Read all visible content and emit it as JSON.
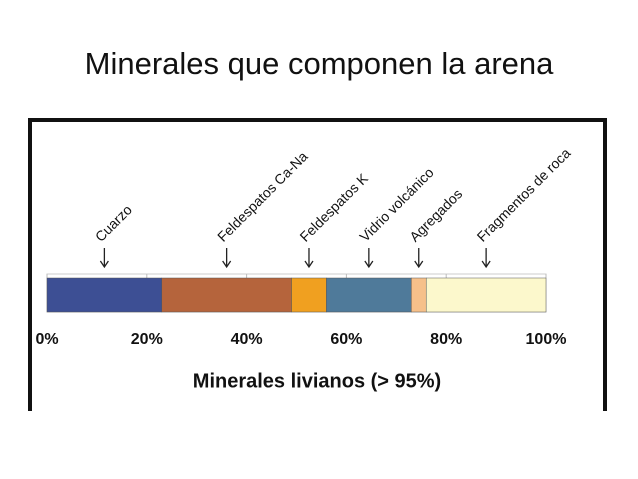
{
  "chart_data": {
    "type": "stacked-bar",
    "orientation": "horizontal",
    "title": "Minerales que componen la arena",
    "x_label": "Minerales livianos (> 95%)",
    "series": [
      {
        "name": "Cuarzo",
        "color": "#3d4f94",
        "values": [
          23
        ]
      },
      {
        "name": "Feldespatos Ca-Na",
        "color": "#b5643c",
        "values": [
          26
        ]
      },
      {
        "name": "Feldespatos K",
        "color": "#f0a020",
        "values": [
          7
        ]
      },
      {
        "name": "Vidrio volcánico",
        "color": "#4f7a9a",
        "values": [
          17
        ]
      },
      {
        "name": "Agregados",
        "color": "#f6c08a",
        "values": [
          3
        ]
      },
      {
        "name": "Fragmentos de roca",
        "color": "#fcf8cc",
        "values": [
          24
        ]
      }
    ],
    "xlim": [
      0,
      100
    ],
    "xticks": [
      {
        "value": 0,
        "label": "0%"
      },
      {
        "value": 20,
        "label": "20%"
      },
      {
        "value": 40,
        "label": "40%"
      },
      {
        "value": 60,
        "label": "60%"
      },
      {
        "value": 80,
        "label": "80%"
      },
      {
        "value": 100,
        "label": "100%"
      }
    ]
  }
}
